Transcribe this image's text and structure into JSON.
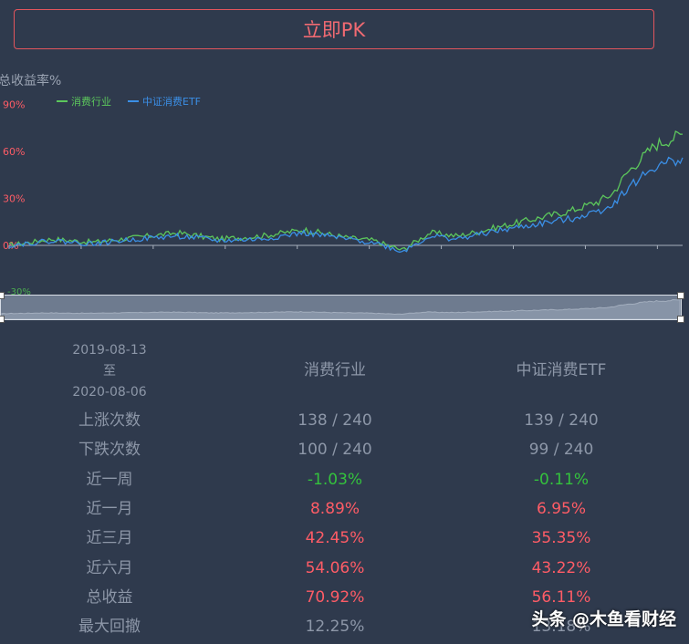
{
  "pk_button": "立即PK",
  "chart_data": {
    "type": "line",
    "ylabel": "总收益率%",
    "y_ticks": [
      "90%",
      "60%",
      "30%",
      "0%",
      "-30%"
    ],
    "ylim": [
      -30,
      90
    ],
    "series": [
      {
        "name": "消费行业",
        "color": "#5cc75c",
        "x": [
          0,
          15,
          30,
          45,
          60,
          75,
          90,
          105,
          120,
          130,
          140,
          150,
          160,
          170,
          180,
          190,
          200,
          210,
          215,
          220,
          230,
          240
        ],
        "values": [
          0,
          4,
          2,
          5,
          8,
          4,
          6,
          10,
          5,
          3,
          -3,
          8,
          6,
          10,
          14,
          18,
          22,
          28,
          33,
          46,
          64,
          71
        ]
      },
      {
        "name": "中证消费ETF",
        "color": "#3b8fe6",
        "x": [
          0,
          15,
          30,
          45,
          60,
          75,
          90,
          105,
          120,
          130,
          140,
          150,
          160,
          170,
          180,
          190,
          200,
          210,
          215,
          220,
          230,
          240
        ],
        "values": [
          0,
          3,
          1,
          4,
          6,
          3,
          4,
          8,
          4,
          2,
          -4,
          6,
          4,
          8,
          11,
          14,
          17,
          22,
          26,
          36,
          50,
          56
        ]
      }
    ]
  },
  "stats": {
    "period": {
      "start": "2019-08-13",
      "to": "至",
      "end": "2020-08-06"
    },
    "col1": "消费行业",
    "col2": "中证消费ETF",
    "rows": [
      {
        "label": "上涨次数",
        "v1": "138 / 240",
        "v2": "139 / 240",
        "c1": "grey",
        "c2": "grey"
      },
      {
        "label": "下跌次数",
        "v1": "100 / 240",
        "v2": "99 / 240",
        "c1": "grey",
        "c2": "grey"
      },
      {
        "label": "近一周",
        "v1": "-1.03%",
        "v2": "-0.11%",
        "c1": "green",
        "c2": "green"
      },
      {
        "label": "近一月",
        "v1": "8.89%",
        "v2": "6.95%",
        "c1": "red",
        "c2": "red"
      },
      {
        "label": "近三月",
        "v1": "42.45%",
        "v2": "35.35%",
        "c1": "red",
        "c2": "red"
      },
      {
        "label": "近六月",
        "v1": "54.06%",
        "v2": "43.22%",
        "c1": "red",
        "c2": "red"
      },
      {
        "label": "总收益",
        "v1": "70.92%",
        "v2": "56.11%",
        "c1": "red",
        "c2": "red"
      },
      {
        "label": "最大回撤",
        "v1": "12.25%",
        "v2": "13.18%",
        "c1": "grey",
        "c2": "grey"
      }
    ]
  },
  "watermark": "头条 @木鱼看财经"
}
